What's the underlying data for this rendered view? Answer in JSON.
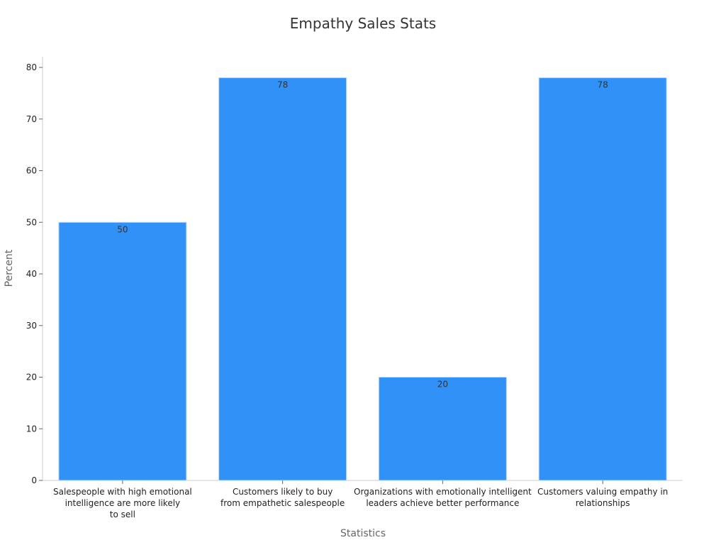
{
  "chart_data": {
    "type": "bar",
    "title": "Empathy Sales Stats",
    "xlabel": "Statistics",
    "ylabel": "Percent",
    "categories": [
      [
        "Salespeople with high emotional",
        "intelligence are more likely",
        "to sell"
      ],
      [
        "Customers likely to buy",
        "from empathetic salespeople"
      ],
      [
        "Organizations with emotionally intelligent",
        "leaders achieve better performance"
      ],
      [
        "Customers valuing empathy in",
        "relationships"
      ]
    ],
    "values": [
      50,
      78,
      20,
      78
    ],
    "data_labels": [
      "50",
      "78",
      "20",
      "78"
    ],
    "ylim": [
      0,
      80
    ],
    "yticks": [
      0,
      10,
      20,
      30,
      40,
      50,
      60,
      70,
      80
    ],
    "grid": false,
    "bar_color": "#3092f8"
  }
}
